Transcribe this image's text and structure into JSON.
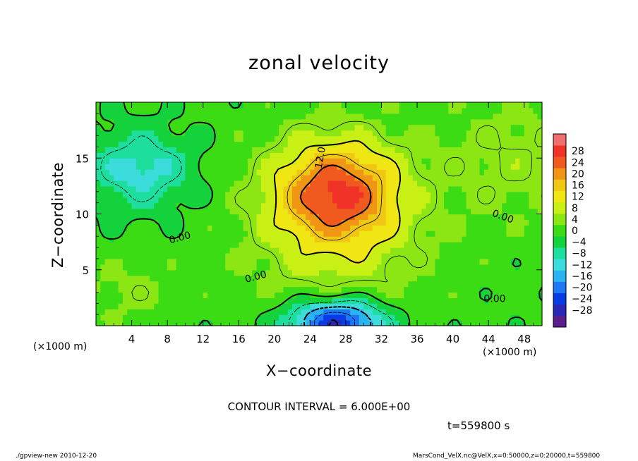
{
  "chart_data": {
    "type": "heatmap",
    "title": "zonal velocity",
    "xlabel": "X−coordinate",
    "ylabel": "Z−coordinate",
    "x_scale_note": "(×1000 m)",
    "z_scale_note": "(×1000 m)",
    "xlim": [
      0,
      50
    ],
    "ylim": [
      0,
      20
    ],
    "x_ticks": [
      4,
      8,
      12,
      16,
      20,
      24,
      28,
      32,
      36,
      40,
      44,
      48
    ],
    "y_ticks": [
      5,
      10,
      15
    ],
    "colorbar": {
      "levels": [
        -30,
        -28,
        -24,
        -20,
        -16,
        -12,
        -8,
        -4,
        0,
        4,
        8,
        12,
        16,
        20,
        24,
        28,
        30
      ],
      "labels": [
        "28",
        "24",
        "20",
        "16",
        "12",
        "8",
        "4",
        "0",
        "−4",
        "−8",
        "−12",
        "−16",
        "−20",
        "−24",
        "−28"
      ],
      "colors": [
        "#5a1e8c",
        "#2828b4",
        "#0a3ce6",
        "#1e78f5",
        "#28b4f0",
        "#3cdcdc",
        "#1ede9e",
        "#14d23c",
        "#3cdc14",
        "#8ce614",
        "#c8f014",
        "#f0e614",
        "#f0c814",
        "#f09614",
        "#f05a1e",
        "#f03228",
        "#f06e6e"
      ]
    },
    "contour_interval": 6,
    "contour_labels": [
      "12.0",
      "0.00",
      "0.00",
      "0.00",
      "0.00"
    ],
    "field_features": [
      {
        "type": "max",
        "x": 27,
        "z": 10.5,
        "value": 20
      },
      {
        "type": "min",
        "x": 27,
        "z": 1.0,
        "value": -24
      },
      {
        "type": "min",
        "x": 5,
        "z": 14,
        "value": -10
      }
    ],
    "time_s": 559800
  },
  "texts": {
    "contour_interval": "CONTOUR INTERVAL = 6.000E+00",
    "time": "t=559800 s",
    "footer_left": "./gpview-new   2010-12-20",
    "footer_right": "MarsCond_VelX.nc@VelX,x=0:50000,z=0:20000,t=559800"
  }
}
